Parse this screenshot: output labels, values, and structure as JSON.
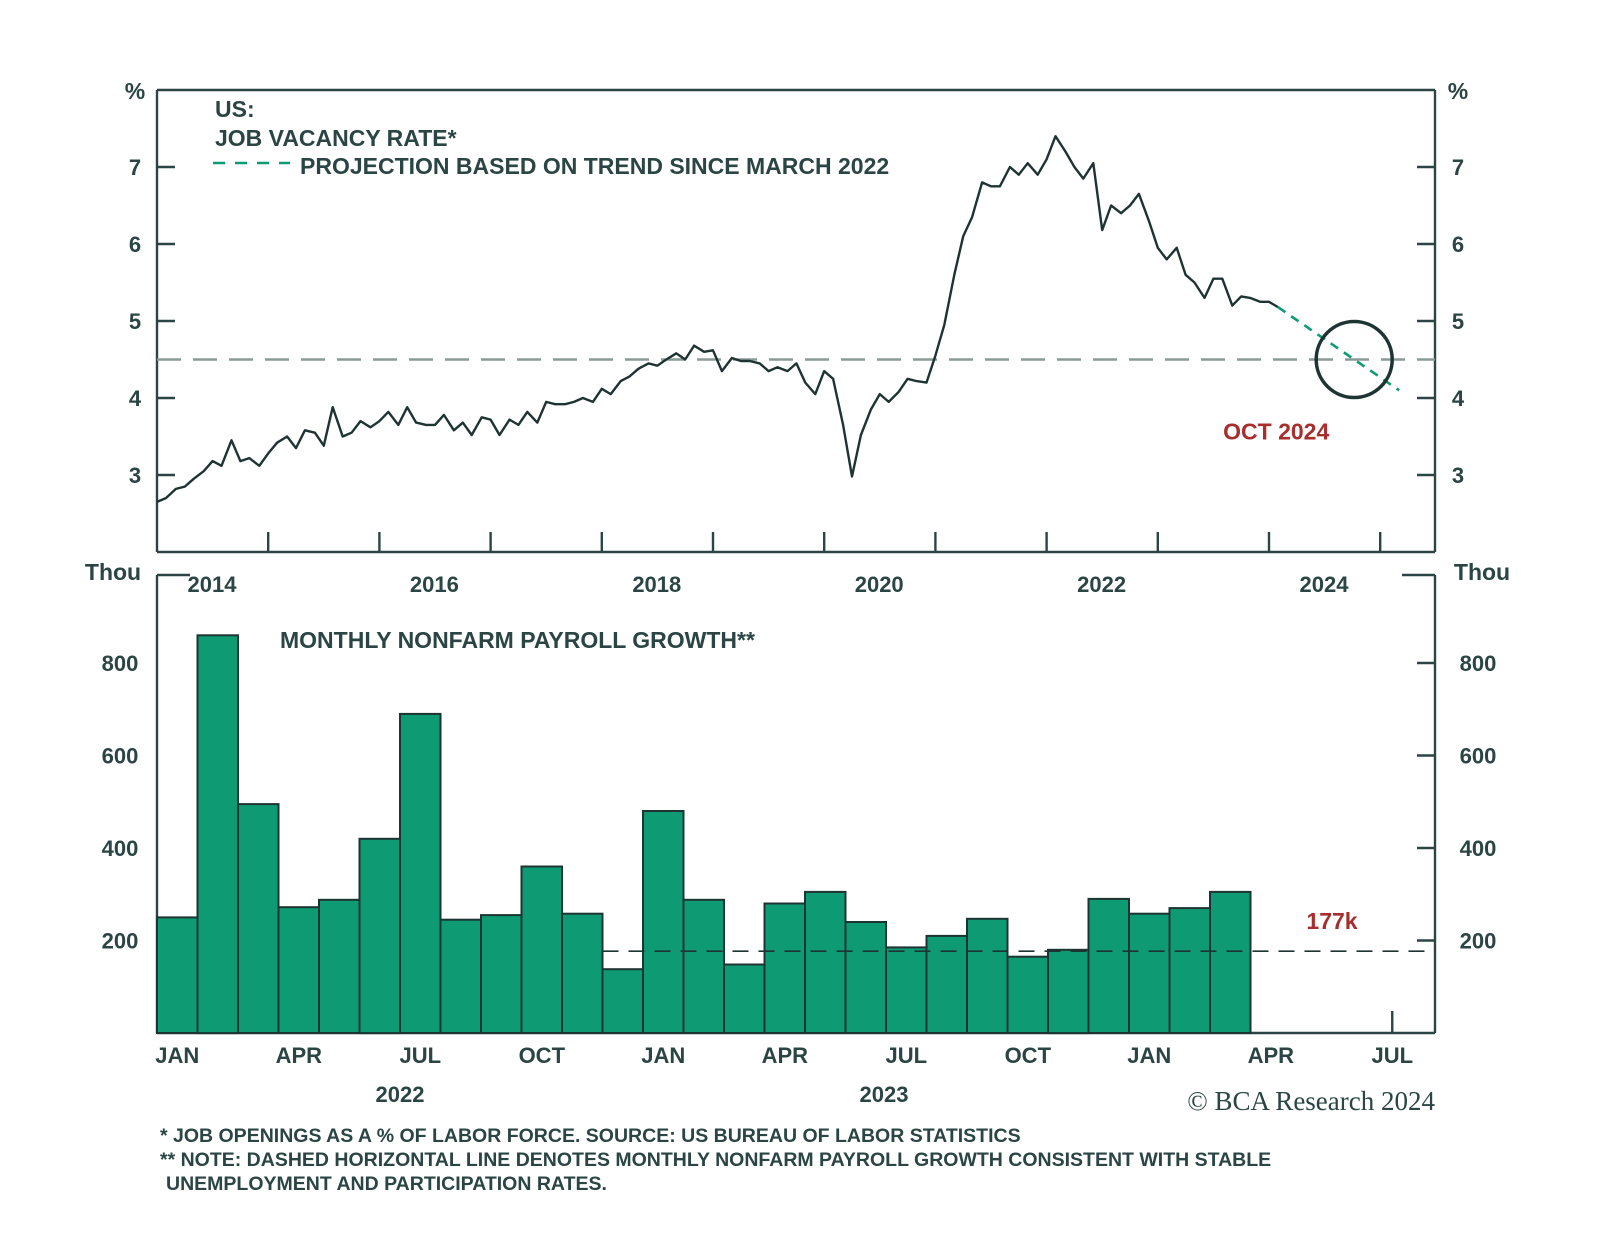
{
  "chart_data": [
    {
      "type": "line",
      "title": "US:",
      "series_label": "JOB VACANCY RATE*",
      "projection_label": "PROJECTION BASED ON TREND SINCE MARCH 2022",
      "ylabel": "%",
      "ylim": [
        2.0,
        7.5
      ],
      "y_ticks": [
        3,
        4,
        5,
        6,
        7
      ],
      "x_ticks": [
        "2014",
        "2016",
        "2018",
        "2020",
        "2022",
        "2024"
      ],
      "xlim": [
        2014.0,
        2025.5
      ],
      "reference_line": 4.5,
      "annotation": "OCT 2024",
      "colors": {
        "series": "#1d3432",
        "projection": "#0e9b74",
        "annotation": "#a82d2d"
      },
      "series": [
        {
          "name": "JOB VACANCY RATE*",
          "x": [
            2014.0,
            2014.08,
            2014.17,
            2014.25,
            2014.33,
            2014.42,
            2014.5,
            2014.58,
            2014.67,
            2014.75,
            2014.83,
            2014.92,
            2015.0,
            2015.08,
            2015.17,
            2015.25,
            2015.33,
            2015.42,
            2015.5,
            2015.58,
            2015.67,
            2015.75,
            2015.83,
            2015.92,
            2016.0,
            2016.08,
            2016.17,
            2016.25,
            2016.33,
            2016.42,
            2016.5,
            2016.58,
            2016.67,
            2016.75,
            2016.83,
            2016.92,
            2017.0,
            2017.08,
            2017.17,
            2017.25,
            2017.33,
            2017.42,
            2017.5,
            2017.58,
            2017.67,
            2017.75,
            2017.83,
            2017.92,
            2018.0,
            2018.08,
            2018.17,
            2018.25,
            2018.33,
            2018.42,
            2018.5,
            2018.58,
            2018.67,
            2018.75,
            2018.83,
            2018.92,
            2019.0,
            2019.08,
            2019.17,
            2019.25,
            2019.33,
            2019.42,
            2019.5,
            2019.58,
            2019.67,
            2019.75,
            2019.83,
            2019.92,
            2020.0,
            2020.08,
            2020.17,
            2020.25,
            2020.33,
            2020.42,
            2020.5,
            2020.58,
            2020.67,
            2020.75,
            2020.83,
            2020.92,
            2021.0,
            2021.08,
            2021.17,
            2021.25,
            2021.33,
            2021.42,
            2021.5,
            2021.58,
            2021.67,
            2021.75,
            2021.83,
            2021.92,
            2022.0,
            2022.08,
            2022.17,
            2022.25,
            2022.33,
            2022.42,
            2022.5,
            2022.58,
            2022.67,
            2022.75,
            2022.83,
            2022.92,
            2023.0,
            2023.08,
            2023.17,
            2023.25,
            2023.33,
            2023.42,
            2023.5,
            2023.58,
            2023.67,
            2023.75,
            2023.83,
            2023.92,
            2024.0,
            2024.08
          ],
          "values": [
            2.65,
            2.7,
            2.82,
            2.85,
            2.95,
            3.05,
            3.18,
            3.12,
            3.45,
            3.18,
            3.22,
            3.12,
            3.28,
            3.42,
            3.5,
            3.35,
            3.58,
            3.55,
            3.38,
            3.88,
            3.5,
            3.55,
            3.7,
            3.62,
            3.7,
            3.82,
            3.65,
            3.88,
            3.68,
            3.65,
            3.65,
            3.78,
            3.58,
            3.68,
            3.52,
            3.75,
            3.72,
            3.52,
            3.72,
            3.65,
            3.82,
            3.68,
            3.95,
            3.92,
            3.92,
            3.95,
            4.0,
            3.95,
            4.12,
            4.05,
            4.22,
            4.28,
            4.38,
            4.45,
            4.42,
            4.5,
            4.58,
            4.5,
            4.68,
            4.6,
            4.62,
            4.35,
            4.52,
            4.48,
            4.48,
            4.45,
            4.35,
            4.4,
            4.35,
            4.45,
            4.2,
            4.05,
            4.35,
            4.25,
            3.65,
            2.98,
            3.52,
            3.85,
            4.05,
            3.95,
            4.08,
            4.25,
            4.22,
            4.2,
            4.55,
            4.95,
            5.6,
            6.1,
            6.35,
            6.8,
            6.75,
            6.75,
            7.0,
            6.9,
            7.05,
            6.9,
            7.1,
            7.4,
            7.2,
            7.0,
            6.85,
            7.05,
            6.18,
            6.5,
            6.4,
            6.5,
            6.65,
            6.3,
            5.95,
            5.8,
            5.95,
            5.6,
            5.5,
            5.3,
            5.55,
            5.55,
            5.2,
            5.32,
            5.3,
            5.25,
            5.25,
            5.18
          ]
        },
        {
          "name": "PROJECTION BASED ON TREND SINCE MARCH 2022",
          "x": [
            2024.08,
            2025.17
          ],
          "values": [
            5.18,
            4.1
          ]
        }
      ]
    },
    {
      "type": "bar",
      "title": "MONTHLY NONFARM PAYROLL GROWTH**",
      "ylabel": "Thou",
      "ylim": [
        0,
        900
      ],
      "y_ticks": [
        200,
        400,
        600,
        800
      ],
      "x_ticks": [
        "JAN",
        "APR",
        "JUL",
        "OCT",
        "JAN",
        "APR",
        "JUL",
        "OCT",
        "JAN",
        "APR",
        "JUL"
      ],
      "year_labels": [
        "2022",
        "2023"
      ],
      "reference_line": 177,
      "annotation": "177k",
      "colors": {
        "bar": "#0e9b74",
        "annotation": "#a82d2d"
      },
      "categories": [
        "Jan 2022",
        "Feb 2022",
        "Mar 2022",
        "Apr 2022",
        "May 2022",
        "Jun 2022",
        "Jul 2022",
        "Aug 2022",
        "Sep 2022",
        "Oct 2022",
        "Nov 2022",
        "Dec 2022",
        "Jan 2023",
        "Feb 2023",
        "Mar 2023",
        "Apr 2023",
        "May 2023",
        "Jun 2023",
        "Jul 2023",
        "Aug 2023",
        "Sep 2023",
        "Oct 2023",
        "Nov 2023",
        "Dec 2023",
        "Jan 2024",
        "Feb 2024",
        "Mar 2024"
      ],
      "values": [
        250,
        860,
        495,
        272,
        288,
        420,
        690,
        245,
        255,
        360,
        258,
        138,
        480,
        288,
        148,
        280,
        305,
        240,
        185,
        210,
        247,
        165,
        180,
        290,
        258,
        270,
        305
      ]
    }
  ],
  "footnotes": {
    "line1": "* JOB OPENINGS AS A % OF LABOR FORCE. SOURCE: US BUREAU OF LABOR STATISTICS",
    "line2": "** NOTE: DASHED HORIZONTAL LINE DENOTES MONTHLY NONFARM PAYROLL GROWTH CONSISTENT WITH STABLE",
    "line3": "UNEMPLOYMENT AND PARTICIPATION RATES."
  },
  "copyright": "© BCA Research 2024"
}
